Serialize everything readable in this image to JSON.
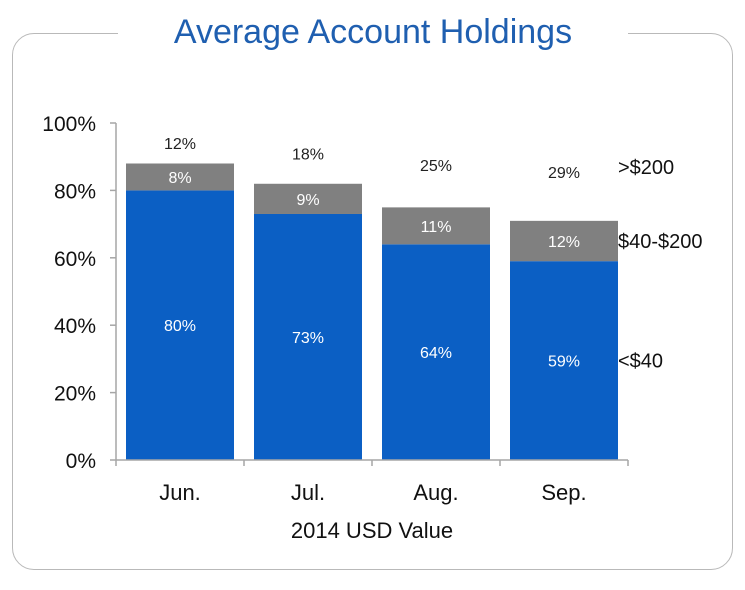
{
  "chart_data": {
    "type": "bar",
    "stacked": true,
    "title": "Average Account Holdings",
    "xlabel": "2014 USD Value",
    "ylabel": "",
    "ylim": [
      0,
      100
    ],
    "yticks": [
      "0%",
      "20%",
      "40%",
      "60%",
      "80%",
      "100%"
    ],
    "categories": [
      "Jun.",
      "Jul.",
      "Aug.",
      "Sep."
    ],
    "series": [
      {
        "name": "<$40",
        "values": [
          80,
          73,
          64,
          59
        ],
        "labels": [
          "80%",
          "73%",
          "64%",
          "59%"
        ],
        "color": "#0b5fc4",
        "label_color": "#ffffff"
      },
      {
        "name": "$40-$200",
        "values": [
          8,
          9,
          11,
          12
        ],
        "labels": [
          "8%",
          "9%",
          "11%",
          "12%"
        ],
        "color": "#808080",
        "label_color": "#ffffff"
      },
      {
        "name": ">$200",
        "values": [
          12,
          18,
          25,
          29
        ],
        "labels": [
          "12%",
          "18%",
          "25%",
          "29%"
        ],
        "color": "#ffffff",
        "label_color": "#222222"
      }
    ],
    "legend": "right",
    "grid": false
  }
}
